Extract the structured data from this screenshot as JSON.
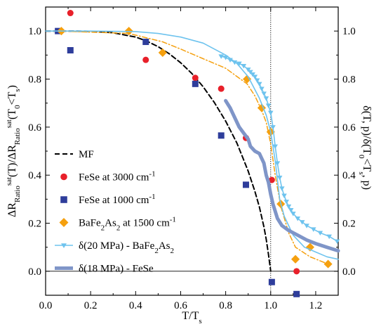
{
  "chart_data": {
    "type": "scatter",
    "xlabel": {
      "main": "T/T",
      "sub": "s"
    },
    "ylabel_left": [
      {
        "t": "ΔR",
        "k": "n"
      },
      {
        "t": "Ratio",
        "k": "sub"
      },
      {
        "t": "sat",
        "k": "sup"
      },
      {
        "t": "(T)/ΔR",
        "k": "n"
      },
      {
        "t": "Ratio",
        "k": "sub"
      },
      {
        "t": "sat",
        "k": "sup"
      },
      {
        "t": "(T",
        "k": "n"
      },
      {
        "t": "0",
        "k": "sub"
      },
      {
        "t": "<T",
        "k": "n"
      },
      {
        "t": "s",
        "k": "sub"
      },
      {
        "t": ")",
        "k": "n"
      }
    ],
    "ylabel_right": [
      {
        "t": "δ(T, p)/δ(T",
        "k": "n"
      },
      {
        "t": "0",
        "k": "sub"
      },
      {
        "t": "<T",
        "k": "n"
      },
      {
        "t": "s",
        "k": "sub"
      },
      {
        "t": ", p)",
        "k": "n"
      }
    ],
    "xlim": [
      0.0,
      1.3
    ],
    "ylim": [
      -0.1,
      1.1
    ],
    "x_ticks": [
      0.0,
      0.2,
      0.4,
      0.6,
      0.8,
      1.0,
      1.2
    ],
    "x_tick_labels": [
      "0.0",
      "0.2",
      "0.4",
      "0.6",
      "0.8",
      "1.0",
      "1.2"
    ],
    "y_ticks": [
      0.0,
      0.2,
      0.4,
      0.6,
      0.8,
      1.0
    ],
    "y_tick_labels": [
      "0.0",
      "0.2",
      "0.4",
      "0.6",
      "0.8",
      "1.0"
    ],
    "reference_lines": {
      "vertical_x": 1.0,
      "horizontal_y": 0.0
    },
    "grid": false,
    "legend_position": "lower-left",
    "colors": {
      "red": "#e8202a",
      "navy": "#2e3d9b",
      "orange": "#f5a00f",
      "sky": "#6ec3ee",
      "steel": "#7f95c8",
      "black": "#000000"
    },
    "series": [
      {
        "legend": [
          {
            "t": "MF",
            "k": "n"
          }
        ],
        "kind": "dashed-line",
        "color": "#000000",
        "x": [
          0.0,
          0.1,
          0.2,
          0.3,
          0.4,
          0.45,
          0.5,
          0.55,
          0.6,
          0.65,
          0.7,
          0.75,
          0.8,
          0.85,
          0.9,
          0.93,
          0.95,
          0.97,
          0.98,
          0.99,
          0.995,
          1.0
        ],
        "y": [
          1.0,
          1.0,
          0.999,
          0.993,
          0.975,
          0.958,
          0.935,
          0.905,
          0.868,
          0.823,
          0.768,
          0.702,
          0.625,
          0.533,
          0.417,
          0.332,
          0.267,
          0.185,
          0.133,
          0.07,
          0.035,
          0.0
        ]
      },
      {
        "legend": [
          {
            "t": "FeSe at 3000 cm",
            "k": "n"
          },
          {
            "t": "-1",
            "k": "sup"
          }
        ],
        "kind": "circle",
        "color": "#e8202a",
        "x": [
          0.11,
          0.445,
          0.665,
          0.78,
          0.89,
          1.005,
          1.115
        ],
        "y": [
          1.075,
          0.88,
          0.805,
          0.76,
          0.555,
          0.38,
          0.0
        ]
      },
      {
        "legend": [
          {
            "t": "FeSe at 1000 cm",
            "k": "n"
          },
          {
            "t": "-1",
            "k": "sup"
          }
        ],
        "kind": "square",
        "color": "#2e3d9b",
        "x": [
          0.055,
          0.11,
          0.445,
          0.665,
          0.78,
          0.89,
          1.005,
          1.115
        ],
        "y": [
          1.0,
          0.92,
          0.955,
          0.78,
          0.565,
          0.36,
          -0.045,
          -0.095
        ]
      },
      {
        "legend": [
          {
            "t": "BaFe",
            "k": "n"
          },
          {
            "t": "2",
            "k": "sub"
          },
          {
            "t": "As",
            "k": "n"
          },
          {
            "t": "2",
            "k": "sub"
          },
          {
            "t": " at 1500 cm",
            "k": "n"
          },
          {
            "t": "-1",
            "k": "sup"
          }
        ],
        "kind": "diamond",
        "color": "#f5a00f",
        "x": [
          0.07,
          0.37,
          0.52,
          0.895,
          0.96,
          1.0,
          1.045,
          1.11,
          1.175,
          1.255
        ],
        "y": [
          1.0,
          1.0,
          0.91,
          0.8,
          0.68,
          0.58,
          0.28,
          0.05,
          0.1,
          0.03
        ]
      },
      {
        "legend": [],
        "kind": "dashdot-line",
        "color": "#f5a00f",
        "x": [
          0.07,
          0.37,
          0.52,
          0.6,
          0.7,
          0.8,
          0.895,
          0.93,
          0.96,
          0.98,
          1.0,
          1.02,
          1.045,
          1.08,
          1.11,
          1.175,
          1.255
        ],
        "y": [
          1.0,
          0.99,
          0.955,
          0.925,
          0.885,
          0.845,
          0.78,
          0.73,
          0.67,
          0.62,
          0.53,
          0.4,
          0.27,
          0.16,
          0.1,
          0.06,
          0.03
        ]
      },
      {
        "legend": [],
        "kind": "line",
        "color": "#6ec3ee",
        "x": [
          0.0,
          0.2,
          0.4,
          0.5,
          0.6,
          0.7,
          0.8,
          0.85,
          0.9,
          0.95,
          0.98,
          1.0,
          1.02,
          1.04,
          1.06,
          1.1,
          1.15,
          1.2,
          1.25,
          1.3
        ],
        "y": [
          1.0,
          1.0,
          0.998,
          0.99,
          0.975,
          0.95,
          0.9,
          0.865,
          0.81,
          0.72,
          0.65,
          0.58,
          0.46,
          0.3,
          0.23,
          0.15,
          0.1,
          0.08,
          0.06,
          0.05
        ]
      },
      {
        "legend": [
          {
            "t": "δ(20 MPa) - BaFe",
            "k": "n"
          },
          {
            "t": "2",
            "k": "sub"
          },
          {
            "t": "As",
            "k": "n"
          },
          {
            "t": "2",
            "k": "sub"
          }
        ],
        "kind": "triangle-line",
        "color": "#6ec3ee",
        "x": [
          0.78,
          0.8,
          0.82,
          0.84,
          0.86,
          0.88,
          0.9,
          0.91,
          0.92,
          0.93,
          0.94,
          0.95,
          0.96,
          0.97,
          0.98,
          0.99,
          1.0,
          1.01,
          1.02,
          1.03,
          1.04,
          1.05,
          1.06,
          1.07,
          1.08,
          1.09,
          1.1,
          1.12,
          1.14,
          1.16,
          1.19,
          1.22,
          1.26,
          1.295
        ],
        "y": [
          0.895,
          0.89,
          0.88,
          0.87,
          0.865,
          0.855,
          0.84,
          0.83,
          0.82,
          0.81,
          0.795,
          0.78,
          0.76,
          0.74,
          0.72,
          0.69,
          0.66,
          0.6,
          0.52,
          0.45,
          0.39,
          0.345,
          0.315,
          0.29,
          0.27,
          0.255,
          0.24,
          0.22,
          0.205,
          0.19,
          0.175,
          0.16,
          0.145,
          0.125
        ]
      },
      {
        "legend": [
          {
            "t": "δ(18 MPa) - FeSe",
            "k": "n"
          }
        ],
        "kind": "thick-line",
        "color": "#7f95c8",
        "x": [
          0.8,
          0.82,
          0.83,
          0.85,
          0.86,
          0.88,
          0.9,
          0.91,
          0.93,
          0.95,
          0.96,
          0.97,
          0.98,
          0.99,
          1.0,
          1.01,
          1.03,
          1.05,
          1.08,
          1.12,
          1.16,
          1.2,
          1.25,
          1.3
        ],
        "y": [
          0.71,
          0.68,
          0.66,
          0.62,
          0.6,
          0.575,
          0.55,
          0.52,
          0.5,
          0.49,
          0.47,
          0.45,
          0.4,
          0.37,
          0.32,
          0.28,
          0.22,
          0.19,
          0.17,
          0.15,
          0.13,
          0.115,
          0.1,
          0.085
        ]
      }
    ]
  }
}
